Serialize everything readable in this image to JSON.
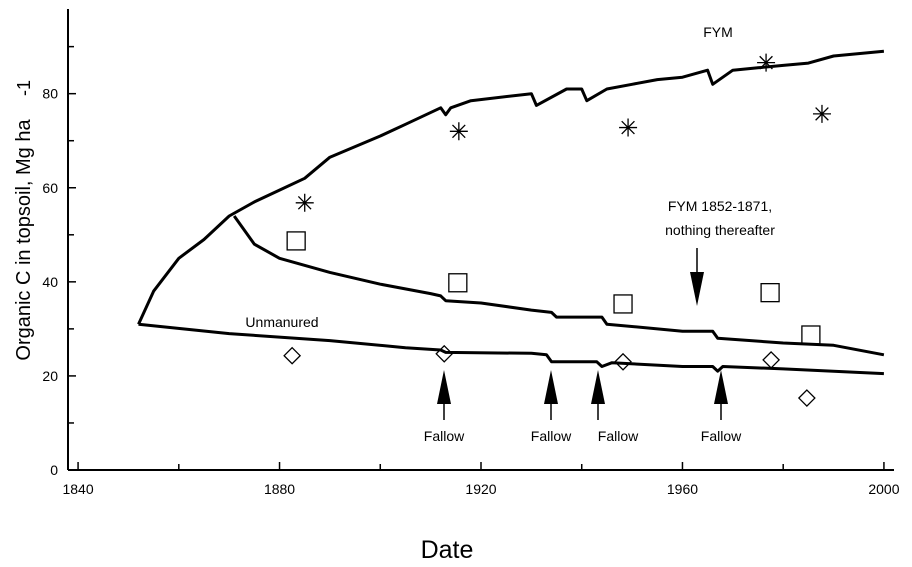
{
  "chart_data": {
    "type": "line",
    "xlabel": "Date",
    "ylabel": "Organic C in topsoil, Mg ha",
    "ylabel_superscript": "-1",
    "xlim": [
      1838,
      2002
    ],
    "xticks": [
      1840,
      1880,
      1920,
      1960,
      2000
    ],
    "xticks_minor": [
      1860,
      1900,
      1940,
      1980
    ],
    "ylim": [
      0,
      98
    ],
    "yticks": [
      0,
      20,
      40,
      60,
      80
    ],
    "yticks_minor": [
      10,
      30,
      50,
      70,
      90
    ],
    "color": "#000000",
    "series": [
      {
        "x": [
          1852,
          1855,
          1860,
          1865,
          1870,
          1875,
          1880,
          1885,
          1890,
          1900,
          1905,
          1912,
          1913,
          1914,
          1918,
          1930,
          1931,
          1937,
          1940,
          1941,
          1945,
          1950,
          1955,
          1960,
          1965,
          1966,
          1970,
          1975,
          1980,
          1985,
          1990,
          2000
        ],
        "values": [
          31,
          38,
          45,
          49,
          54,
          57,
          59.5,
          62,
          66.5,
          71,
          73.5,
          77,
          75.5,
          77,
          78.5,
          80,
          77.5,
          81,
          81,
          78.5,
          81,
          82,
          83,
          83.5,
          85,
          82,
          85,
          85.5,
          86,
          86.5,
          88,
          89
        ]
      },
      {
        "x": [
          1871,
          1875,
          1880,
          1890,
          1900,
          1910,
          1912,
          1913,
          1920,
          1930,
          1934,
          1935,
          1944,
          1945,
          1960,
          1966,
          1967,
          1980,
          1990,
          2000
        ],
        "values": [
          54,
          48,
          45,
          42,
          39.5,
          37.5,
          37,
          36,
          35.5,
          34,
          33.5,
          32.5,
          32.5,
          31,
          29.5,
          29.5,
          28,
          27,
          26.5,
          24.5
        ]
      },
      {
        "x": [
          1852,
          1870,
          1890,
          1905,
          1912,
          1913,
          1930,
          1933,
          1934,
          1943,
          1944,
          1946,
          1960,
          1966,
          1967,
          1968,
          1980,
          2000
        ],
        "values": [
          31,
          29,
          27.5,
          26,
          25.5,
          25,
          24.8,
          24.5,
          23,
          23,
          22,
          22.8,
          22,
          22,
          21,
          22,
          21.5,
          20.5
        ]
      }
    ],
    "points": [
      {
        "marker": "star",
        "x": [
          1885,
          1915.6,
          1949.2,
          1976.6,
          1987.7
        ],
        "values": [
          56.8,
          72,
          72.8,
          86.6,
          75.7
        ]
      },
      {
        "marker": "square",
        "x": [
          1883.3,
          1915.4,
          1948.2,
          1977.4,
          1985.5
        ],
        "values": [
          48.7,
          39.8,
          35.3,
          37.7,
          28.7
        ]
      },
      {
        "marker": "diamond",
        "x": [
          1882.5,
          1912.7,
          1948.2,
          1977.6,
          1984.7
        ],
        "values": [
          24.3,
          24.7,
          23,
          23.4,
          15.3
        ]
      }
    ],
    "annotations": [
      "FYM",
      "FYM 1852-1871,",
      "nothing thereafter",
      "Unmanured",
      "Fallow",
      "Fallow",
      "Fallow",
      "Fallow"
    ]
  }
}
